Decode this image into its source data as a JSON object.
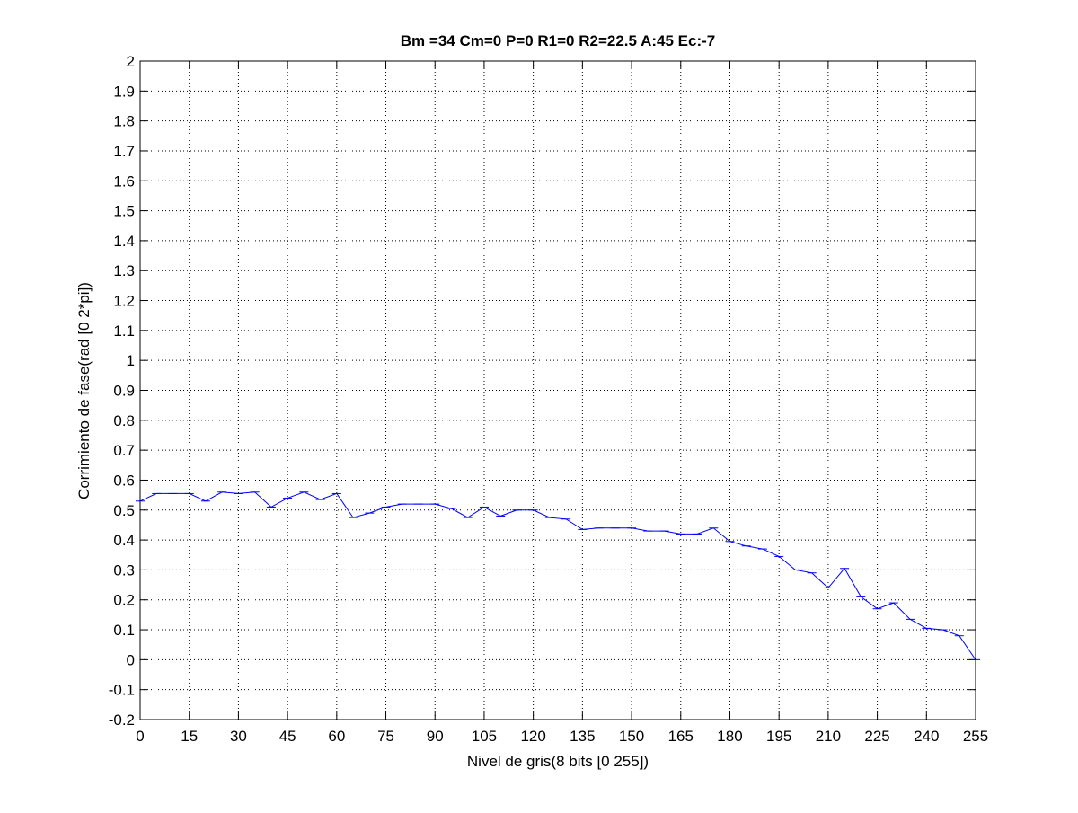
{
  "chart_data": {
    "type": "line",
    "title": "Bm =34  Cm=0  P=0  R1=0  R2=22.5  A:45  Ec:-7",
    "xlabel": "Nivel de gris(8 bits [0 255])",
    "ylabel": "Corrimiento de fase(rad [0 2*pi])",
    "xlim": [
      0,
      255
    ],
    "ylim": [
      -0.2,
      2
    ],
    "xticks": [
      0,
      15,
      30,
      45,
      60,
      75,
      90,
      105,
      120,
      135,
      150,
      165,
      180,
      195,
      210,
      225,
      240,
      255
    ],
    "xtick_labels": [
      "0",
      "15",
      "30",
      "45",
      "60",
      "75",
      "90",
      "105",
      "120",
      "135",
      "150",
      "165",
      "180",
      "195",
      "210",
      "225",
      "240",
      "255"
    ],
    "yticks": [
      -0.2,
      -0.1,
      0,
      0.1,
      0.2,
      0.3,
      0.4,
      0.5,
      0.6,
      0.7,
      0.8,
      0.9,
      1,
      1.1,
      1.2,
      1.3,
      1.4,
      1.5,
      1.6,
      1.7,
      1.8,
      1.9,
      2
    ],
    "ytick_labels": [
      "-0.2",
      "-0.1",
      "0",
      "0.1",
      "0.2",
      "0.3",
      "0.4",
      "0.5",
      "0.6",
      "0.7",
      "0.8",
      "0.9",
      "1",
      "1.1",
      "1.2",
      "1.3",
      "1.4",
      "1.5",
      "1.6",
      "1.7",
      "1.8",
      "1.9",
      "2"
    ],
    "grid": true,
    "series_color": "#0000ff",
    "series": [
      {
        "x": [
          0,
          5,
          10,
          15,
          20,
          25,
          30,
          35,
          40,
          45,
          50,
          55,
          60,
          65,
          70,
          75,
          80,
          85,
          90,
          95,
          100,
          105,
          110,
          115,
          120,
          125,
          130,
          135,
          140,
          145,
          150,
          155,
          160,
          165,
          170,
          175,
          180,
          185,
          190,
          195,
          200,
          205,
          210,
          215,
          220,
          225,
          230,
          235,
          240,
          245,
          250,
          255
        ],
        "y": [
          0.53,
          0.555,
          0.555,
          0.555,
          0.53,
          0.56,
          0.555,
          0.56,
          0.51,
          0.54,
          0.56,
          0.535,
          0.555,
          0.475,
          0.49,
          0.51,
          0.52,
          0.52,
          0.52,
          0.505,
          0.475,
          0.51,
          0.48,
          0.5,
          0.5,
          0.475,
          0.47,
          0.435,
          0.44,
          0.44,
          0.44,
          0.43,
          0.43,
          0.42,
          0.42,
          0.44,
          0.395,
          0.38,
          0.37,
          0.345,
          0.3,
          0.29,
          0.24,
          0.305,
          0.21,
          0.17,
          0.19,
          0.135,
          0.105,
          0.1,
          0.08,
          0.0
        ]
      }
    ]
  }
}
